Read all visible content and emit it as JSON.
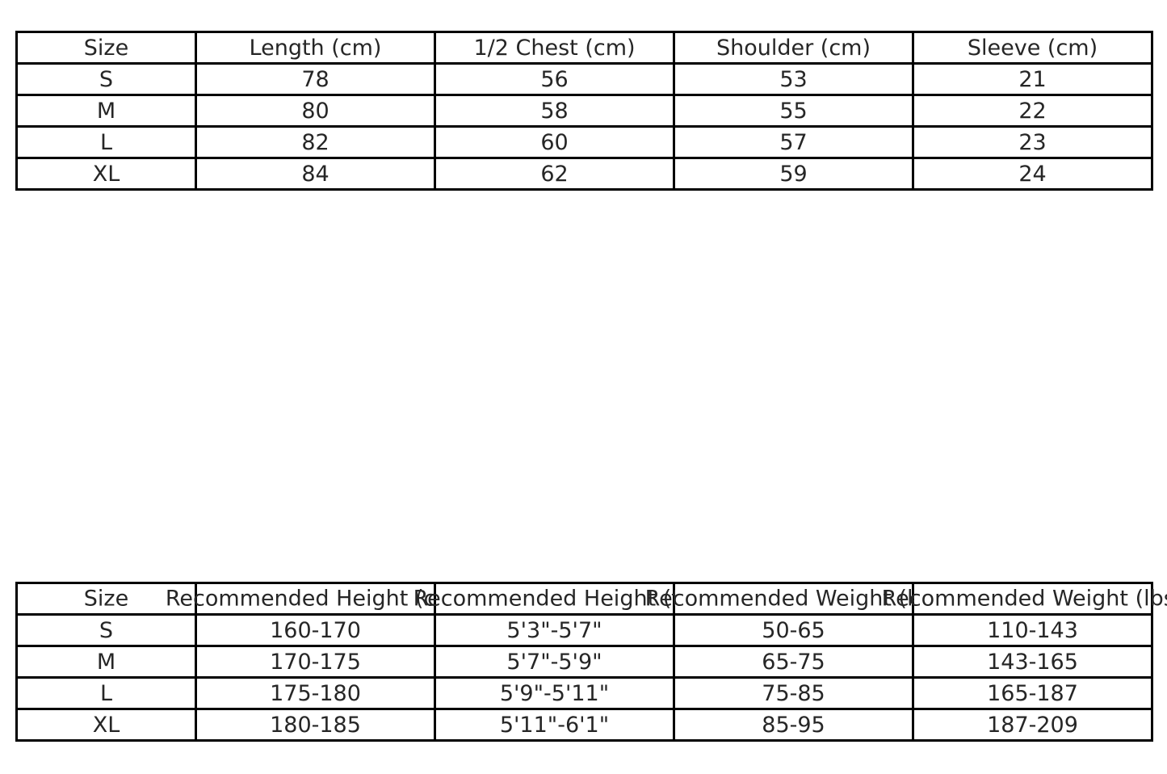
{
  "colors": {
    "border": "#000000",
    "text": "#262626",
    "background": "#ffffff"
  },
  "chart_data": [
    {
      "type": "table",
      "name": "garment-measurements",
      "columns": [
        "Size",
        "Length (cm)",
        "1/2 Chest (cm)",
        "Shoulder (cm)",
        "Sleeve (cm)"
      ],
      "rows": [
        [
          "S",
          "78",
          "56",
          "53",
          "21"
        ],
        [
          "M",
          "80",
          "58",
          "55",
          "22"
        ],
        [
          "L",
          "82",
          "60",
          "57",
          "23"
        ],
        [
          "XL",
          "84",
          "62",
          "59",
          "24"
        ]
      ]
    },
    {
      "type": "table",
      "name": "fit-recommendations",
      "columns": [
        "Size",
        "Recommended Height (cm)",
        "Recommended Height (ft)",
        "Recommended Weight (kg)",
        "Recommended Weight (lbs)"
      ],
      "rows": [
        [
          "S",
          "160-170",
          "5'3\"-5'7\"",
          "50-65",
          "110-143"
        ],
        [
          "M",
          "170-175",
          "5'7\"-5'9\"",
          "65-75",
          "143-165"
        ],
        [
          "L",
          "175-180",
          "5'9\"-5'11\"",
          "75-85",
          "165-187"
        ],
        [
          "XL",
          "180-185",
          "5'11\"-6'1\"",
          "85-95",
          "187-209"
        ]
      ]
    }
  ]
}
